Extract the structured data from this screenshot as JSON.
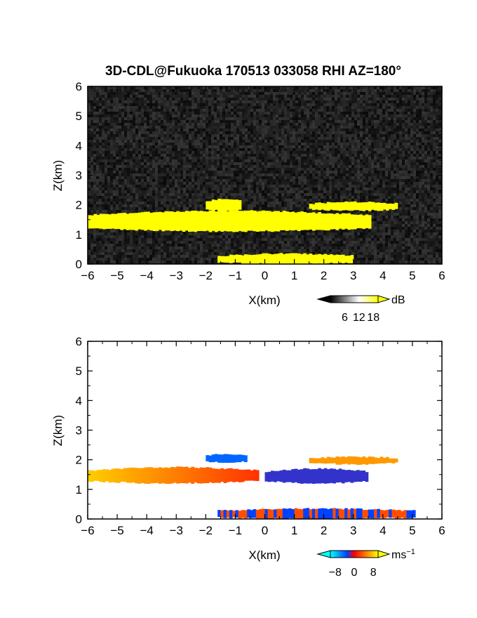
{
  "figure_title": "3D-CDL@Fukuoka 170513 033058 RHI AZ=180°",
  "chart_data": [
    {
      "type": "heatmap",
      "panel": "signal-intensity",
      "xlabel": "X(km)",
      "ylabel": "Z(km)",
      "xlim": [
        -6,
        6
      ],
      "ylim": [
        0,
        6
      ],
      "xticks": [
        -6,
        -5,
        -4,
        -3,
        -2,
        -1,
        0,
        1,
        2,
        3,
        4,
        5,
        6
      ],
      "yticks": [
        0,
        1,
        2,
        3,
        4,
        5,
        6
      ],
      "background": "noise (black/gray, ~0-6 dB)",
      "colorbar": {
        "unit": "dB",
        "ticks": [
          6,
          12,
          18
        ],
        "range": [
          0,
          20
        ],
        "colors": [
          "#000000",
          "#ffffff",
          "#ffff00"
        ]
      },
      "features": [
        {
          "name": "main layer",
          "x_range": [
            -6,
            3.5
          ],
          "z_range": [
            1.1,
            1.8
          ],
          "level": 20,
          "color": "#ffff00"
        },
        {
          "name": "upper bump",
          "x_range": [
            -2,
            -0.8
          ],
          "z_range": [
            1.8,
            2.2
          ],
          "level": 20,
          "color": "#ffff00"
        },
        {
          "name": "upper fragments",
          "x_range": [
            1.5,
            4.5
          ],
          "z_range": [
            1.8,
            2.1
          ],
          "level": 18,
          "color": "#ffff00"
        },
        {
          "name": "near-surface echo",
          "x_range": [
            -1.6,
            3.0
          ],
          "z_range": [
            0.0,
            0.35
          ],
          "level": 18,
          "color": "#ffff00"
        }
      ]
    },
    {
      "type": "heatmap",
      "panel": "radial-velocity",
      "xlabel": "X(km)",
      "ylabel": "Z(km)",
      "xlim": [
        -6,
        6
      ],
      "ylim": [
        0,
        6
      ],
      "xticks": [
        -6,
        -5,
        -4,
        -3,
        -2,
        -1,
        0,
        1,
        2,
        3,
        4,
        5,
        6
      ],
      "yticks": [
        0,
        1,
        2,
        3,
        4,
        5,
        6
      ],
      "colorbar": {
        "unit": "ms",
        "unit_exponent": "−1",
        "ticks": [
          "−8",
          "0",
          "8"
        ],
        "range": [
          -10,
          10
        ],
        "colors": [
          "#00ffff",
          "#0000ff",
          "#ff0000",
          "#ffff00"
        ]
      },
      "features": [
        {
          "name": "west layer (positive)",
          "x_range": [
            -6,
            -0.3
          ],
          "z_range": [
            1.2,
            1.75
          ],
          "value": 8
        },
        {
          "name": "east layer (negative)",
          "x_range": [
            0,
            3.5
          ],
          "z_range": [
            1.2,
            1.7
          ],
          "value": -4
        },
        {
          "name": "upper cell (negative)",
          "x_range": [
            -2,
            -0.6
          ],
          "z_range": [
            1.9,
            2.2
          ],
          "value": -6
        },
        {
          "name": "upper east (positive)",
          "x_range": [
            1.5,
            4.5
          ],
          "z_range": [
            1.85,
            2.1
          ],
          "value": 6
        },
        {
          "name": "near-surface mixed",
          "x_range": [
            -1.6,
            5.0
          ],
          "z_range": [
            0.0,
            0.35
          ],
          "value": 0
        }
      ]
    }
  ]
}
